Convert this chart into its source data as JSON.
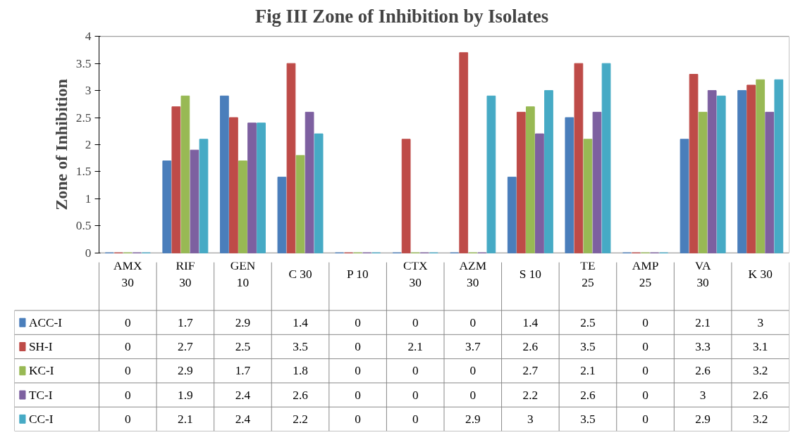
{
  "chart_data": {
    "type": "bar",
    "title": "Fig III Zone of Inhibition by Isolates",
    "ylabel": "Zone of Inhibition",
    "categories": [
      "AMX 30",
      "RIF 30",
      "GEN 10",
      "C 30",
      "P 10",
      "CTX 30",
      "AZM 30",
      "S 10",
      "TE 25",
      "AMP 25",
      "VA 30",
      "K 30"
    ],
    "series": [
      {
        "name": "ACC-I",
        "color": "#4a7ebb",
        "values": [
          0,
          1.7,
          2.9,
          1.4,
          0,
          0,
          0,
          1.4,
          2.5,
          0,
          2.1,
          3
        ]
      },
      {
        "name": "SH-I",
        "color": "#be4b48",
        "values": [
          0,
          2.7,
          2.5,
          3.5,
          0,
          2.1,
          3.7,
          2.6,
          3.5,
          0,
          3.3,
          3.1
        ]
      },
      {
        "name": "KC-I",
        "color": "#98b954",
        "values": [
          0,
          2.9,
          1.7,
          1.8,
          0,
          0,
          0,
          2.7,
          2.1,
          0,
          2.6,
          3.2
        ]
      },
      {
        "name": "TC-I",
        "color": "#7d60a0",
        "values": [
          0,
          1.9,
          2.4,
          2.6,
          0,
          0,
          0,
          2.2,
          2.6,
          0,
          3,
          2.6
        ]
      },
      {
        "name": "CC-I",
        "color": "#46aac5",
        "values": [
          0,
          2.1,
          2.4,
          2.2,
          0,
          0,
          2.9,
          3,
          3.5,
          0,
          2.9,
          3.2
        ]
      }
    ],
    "legend": "bottom left",
    "ylim": [
      0,
      4
    ],
    "yticks": [
      0,
      0.5,
      1,
      1.5,
      2,
      2.5,
      3,
      3.5,
      4
    ],
    "data_labels": true
  }
}
